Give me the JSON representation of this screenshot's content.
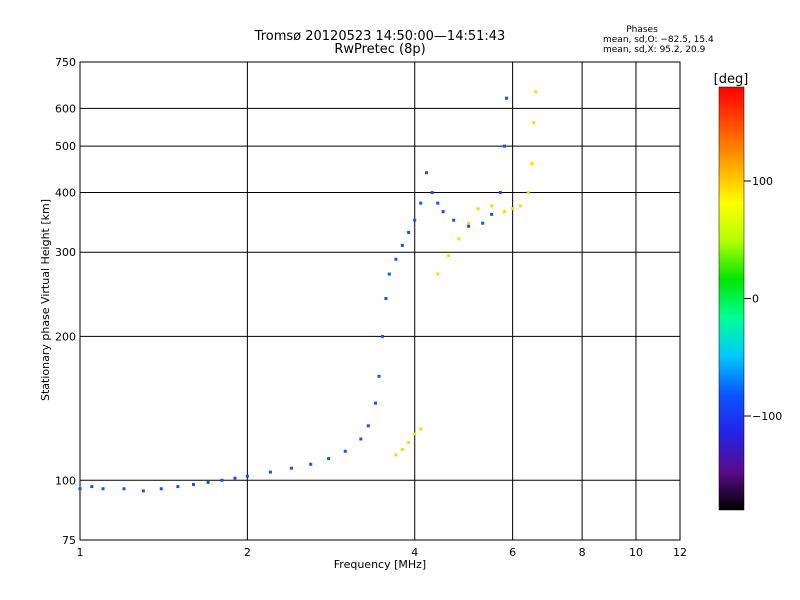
{
  "chart_data": {
    "type": "scatter",
    "title": "Tromsø 20120523 14:50:00—14:51:43",
    "subtitle": "RwPretec (8p)",
    "xlabel": "Frequency [MHz]",
    "ylabel": "Stationary phase Virtual Height [km]",
    "x_scale": "log",
    "y_scale": "log",
    "xlim": [
      1,
      12
    ],
    "ylim": [
      75,
      750
    ],
    "x_ticks": [
      1,
      2,
      4,
      6,
      8,
      10,
      12
    ],
    "y_ticks": [
      75,
      100,
      200,
      300,
      400,
      500,
      600,
      750
    ],
    "grid": true,
    "phases_note": {
      "heading": "Phases",
      "line1": "mean, sd,O: −82.5, 15.4",
      "line2": "mean, sd,X:  95.2, 20.9"
    },
    "colorbar": {
      "label": "[deg]",
      "range": [
        -180,
        180
      ],
      "ticks": [
        100,
        0,
        -100
      ],
      "tick_labels": [
        "100",
        "0",
        "−100"
      ],
      "colors": [
        "#000000",
        "#5a0a8c",
        "#2323e6",
        "#0a55ff",
        "#00c8ff",
        "#00ff96",
        "#00e600",
        "#b4ff00",
        "#ffff00",
        "#ffa500",
        "#ff5000",
        "#ff0000"
      ]
    },
    "series": [
      {
        "mode": "O",
        "phase_mean": -82.5,
        "phase_sd": 15.4,
        "points": [
          [
            1.0,
            96
          ],
          [
            1.05,
            97
          ],
          [
            1.1,
            96
          ],
          [
            1.2,
            96
          ],
          [
            1.3,
            95
          ],
          [
            1.4,
            96
          ],
          [
            1.5,
            97
          ],
          [
            1.6,
            98
          ],
          [
            1.7,
            99
          ],
          [
            1.8,
            100
          ],
          [
            1.9,
            101
          ],
          [
            2.0,
            102
          ],
          [
            2.2,
            104
          ],
          [
            2.4,
            106
          ],
          [
            2.6,
            108
          ],
          [
            2.8,
            111
          ],
          [
            3.0,
            115
          ],
          [
            3.2,
            122
          ],
          [
            3.3,
            130
          ],
          [
            3.4,
            145
          ],
          [
            3.45,
            165
          ],
          [
            3.5,
            200
          ],
          [
            3.55,
            240
          ],
          [
            3.6,
            270
          ],
          [
            3.7,
            290
          ],
          [
            3.8,
            310
          ],
          [
            3.9,
            330
          ],
          [
            4.0,
            350
          ],
          [
            4.1,
            380
          ],
          [
            4.2,
            440
          ],
          [
            4.3,
            400
          ],
          [
            4.4,
            380
          ],
          [
            4.5,
            365
          ],
          [
            4.7,
            350
          ],
          [
            5.0,
            340
          ],
          [
            5.3,
            345
          ],
          [
            5.5,
            360
          ],
          [
            5.7,
            400
          ],
          [
            5.8,
            500
          ],
          [
            5.85,
            630
          ]
        ]
      },
      {
        "mode": "X",
        "phase_mean": 95.2,
        "phase_sd": 20.9,
        "points": [
          [
            3.7,
            113
          ],
          [
            3.8,
            116
          ],
          [
            3.9,
            120
          ],
          [
            4.0,
            125
          ],
          [
            4.1,
            128
          ],
          [
            4.4,
            270
          ],
          [
            4.6,
            295
          ],
          [
            4.8,
            320
          ],
          [
            5.0,
            345
          ],
          [
            5.2,
            370
          ],
          [
            5.5,
            375
          ],
          [
            5.8,
            365
          ],
          [
            6.0,
            370
          ],
          [
            6.2,
            375
          ],
          [
            6.4,
            400
          ],
          [
            6.5,
            460
          ],
          [
            6.55,
            560
          ],
          [
            6.6,
            650
          ]
        ]
      }
    ]
  }
}
